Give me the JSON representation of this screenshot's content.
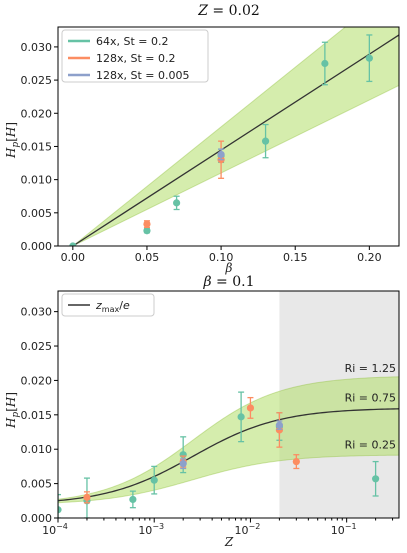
{
  "colors": {
    "green": "#66c2a5",
    "orange": "#fc8d62",
    "blue": "#8da0cb",
    "band": "#b3de69",
    "curve": "#333333",
    "shade": "#cccccc"
  },
  "chart_data": [
    {
      "type": "scatter",
      "title": "Z = 0.02",
      "xlabel": "β",
      "ylabel": "Hp[H]",
      "xlim": [
        -0.01,
        0.22
      ],
      "ylim": [
        0,
        0.033
      ],
      "xticks": [
        0.0,
        0.05,
        0.1,
        0.15,
        0.2
      ],
      "xtick_labels": [
        "0.00",
        "0.05",
        "0.10",
        "0.15",
        "0.20"
      ],
      "yticks": [
        0.0,
        0.005,
        0.01,
        0.015,
        0.02,
        0.025,
        0.03
      ],
      "ytick_labels": [
        "0.000",
        "0.005",
        "0.010",
        "0.015",
        "0.020",
        "0.025",
        "0.030"
      ],
      "legend_position": "top-left",
      "line": {
        "x": [
          0,
          0.22
        ],
        "y": [
          0,
          0.0318
        ]
      },
      "band": {
        "x": [
          0,
          0.22
        ],
        "upper": [
          0,
          0.0395
        ],
        "lower": [
          0,
          0.0242
        ]
      },
      "series": [
        {
          "name": "64x,  St = 0.2",
          "color": "green",
          "points": [
            {
              "x": 0.0,
              "y": 0.0,
              "err": 0.0
            },
            {
              "x": 0.05,
              "y": 0.0023,
              "err": 0.0003
            },
            {
              "x": 0.07,
              "y": 0.0065,
              "err": 0.001
            },
            {
              "x": 0.1,
              "y": 0.0136,
              "err": 0.001
            },
            {
              "x": 0.13,
              "y": 0.0158,
              "err": 0.0025
            },
            {
              "x": 0.17,
              "y": 0.0275,
              "err": 0.0032
            },
            {
              "x": 0.2,
              "y": 0.0283,
              "err": 0.0035
            }
          ]
        },
        {
          "name": "128x,  St = 0.2",
          "color": "orange",
          "points": [
            {
              "x": 0.05,
              "y": 0.0033,
              "err": 0.0005
            },
            {
              "x": 0.1,
              "y": 0.013,
              "err": 0.0028
            }
          ]
        },
        {
          "name": "128x,  St = 0.005",
          "color": "blue",
          "points": [
            {
              "x": 0.1,
              "y": 0.0138,
              "err": 0.0008
            }
          ]
        }
      ]
    },
    {
      "type": "scatter",
      "title": "β = 0.1",
      "xlabel": "Z",
      "ylabel": "Hp[H]",
      "xscale": "log",
      "xlim": [
        0.0001,
        0.35
      ],
      "ylim": [
        0,
        0.033
      ],
      "xticks": [
        0.0001,
        0.001,
        0.01,
        0.1
      ],
      "xtick_labels": [
        [
          "10",
          "−4"
        ],
        [
          "10",
          "−3"
        ],
        [
          "10",
          "−2"
        ],
        [
          "10",
          "−1"
        ]
      ],
      "yticks": [
        0.0,
        0.005,
        0.01,
        0.015,
        0.02,
        0.025,
        0.03
      ],
      "ytick_labels": [
        "0.000",
        "0.005",
        "0.010",
        "0.015",
        "0.020",
        "0.025",
        "0.030"
      ],
      "legend_position": "top-left",
      "legend_label": "zmax/e",
      "shaded_region": [
        0.02,
        0.35
      ],
      "annotations": [
        "Ri = 1.25",
        "Ri = 0.75",
        "Ri = 0.25"
      ],
      "series": [
        {
          "name": "64x,  St = 0.2",
          "color": "green",
          "points": [
            {
              "x": 0.0001,
              "y": 0.0012,
              "err": 0.0022
            },
            {
              "x": 0.0002,
              "y": 0.0025,
              "err": 0.0033
            },
            {
              "x": 0.0006,
              "y": 0.0027,
              "err": 0.0012
            },
            {
              "x": 0.001,
              "y": 0.0055,
              "err": 0.002
            },
            {
              "x": 0.002,
              "y": 0.0092,
              "err": 0.0026
            },
            {
              "x": 0.008,
              "y": 0.0147,
              "err": 0.0036
            },
            {
              "x": 0.02,
              "y": 0.0133,
              "err": 0.002
            },
            {
              "x": 0.2,
              "y": 0.0057,
              "err": 0.0025
            }
          ]
        },
        {
          "name": "128x,  St = 0.2",
          "color": "orange",
          "points": [
            {
              "x": 0.0002,
              "y": 0.003,
              "err": 0.0008
            },
            {
              "x": 0.002,
              "y": 0.0082,
              "err": 0.0008
            },
            {
              "x": 0.01,
              "y": 0.016,
              "err": 0.0015
            },
            {
              "x": 0.02,
              "y": 0.0128,
              "err": 0.0025
            },
            {
              "x": 0.03,
              "y": 0.0082,
              "err": 0.001
            }
          ]
        },
        {
          "name": "128x,  St = 0.005",
          "color": "blue",
          "points": [
            {
              "x": 0.002,
              "y": 0.0079,
              "err": 0.0007
            },
            {
              "x": 0.02,
              "y": 0.0135,
              "err": 0.0006
            }
          ]
        }
      ]
    }
  ],
  "legend_top": [
    {
      "label": "64x,  St = 0.2",
      "color": "green"
    },
    {
      "label": "128x,  St = 0.2",
      "color": "orange"
    },
    {
      "label": "128x,  St = 0.005",
      "color": "blue"
    }
  ]
}
